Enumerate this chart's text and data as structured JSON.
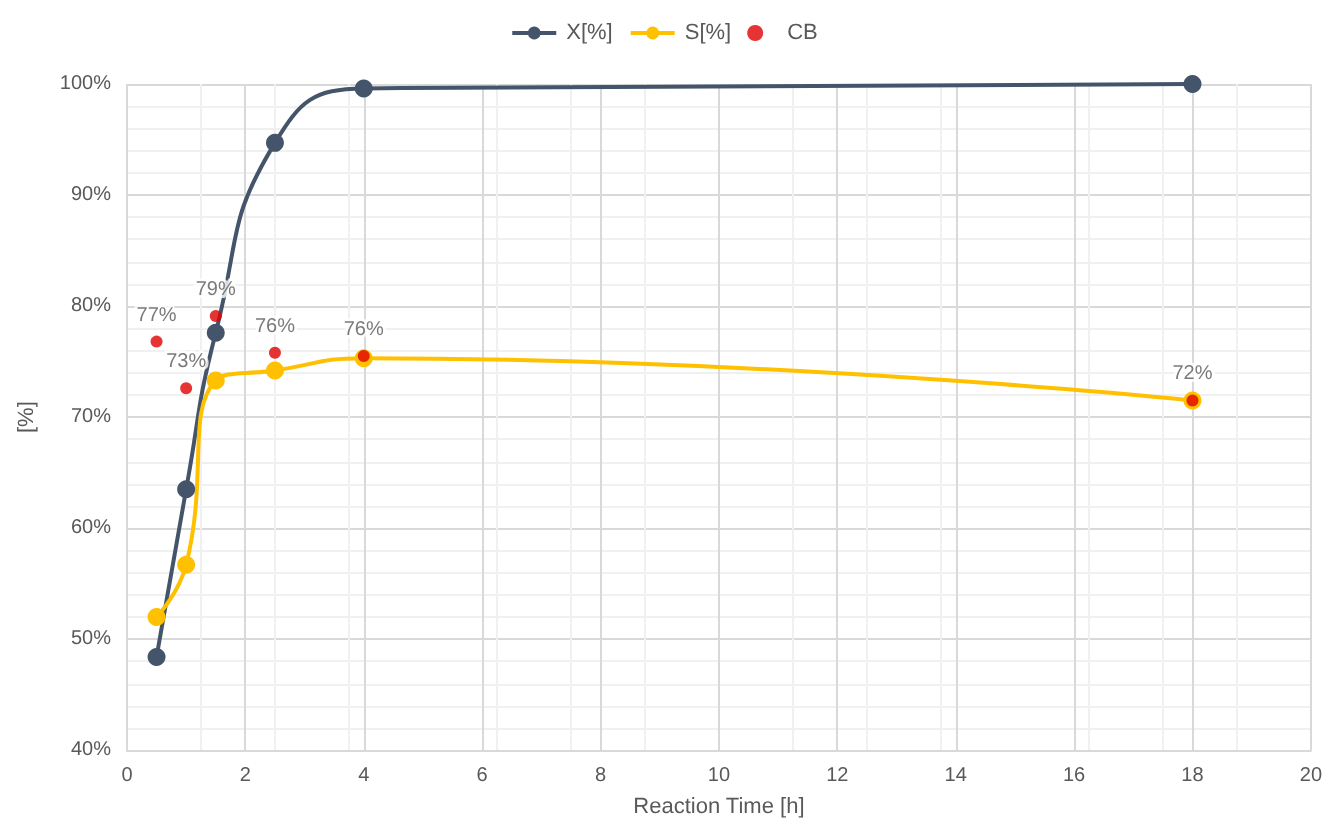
{
  "chart_data": {
    "type": "line",
    "xlabel": "Reaction Time [h]",
    "ylabel": "[%]",
    "x": [
      0.5,
      1,
      1.5,
      2.5,
      4,
      18
    ],
    "series": [
      {
        "name": "X[%]",
        "color": "#44546a",
        "values": [
          48.4,
          63.5,
          77.6,
          94.7,
          99.6,
          100
        ]
      },
      {
        "name": "S[%]",
        "color": "#ffc000",
        "values": [
          52.0,
          56.7,
          73.3,
          74.2,
          75.3,
          71.5
        ]
      },
      {
        "name": "CB",
        "type": "scatter",
        "color": "#e00000",
        "values": [
          76.8,
          72.6,
          79.1,
          75.8,
          75.5,
          71.5
        ],
        "value_labels": [
          "77%",
          "73%",
          "79%",
          "76%",
          "76%",
          "72%"
        ]
      }
    ],
    "xlim": [
      0,
      20
    ],
    "xticks": [
      0,
      2,
      4,
      6,
      8,
      10,
      12,
      14,
      16,
      18,
      20
    ],
    "ylim": [
      40,
      100
    ],
    "yticks": [
      {
        "value": 40,
        "label": "40%"
      },
      {
        "value": 50,
        "label": "50%"
      },
      {
        "value": 60,
        "label": "60%"
      },
      {
        "value": 70,
        "label": "70%"
      },
      {
        "value": 80,
        "label": "80%"
      },
      {
        "value": 90,
        "label": "90%"
      },
      {
        "value": 100,
        "label": "100%"
      }
    ],
    "grid": true,
    "legend": "top",
    "marker": "circle"
  }
}
